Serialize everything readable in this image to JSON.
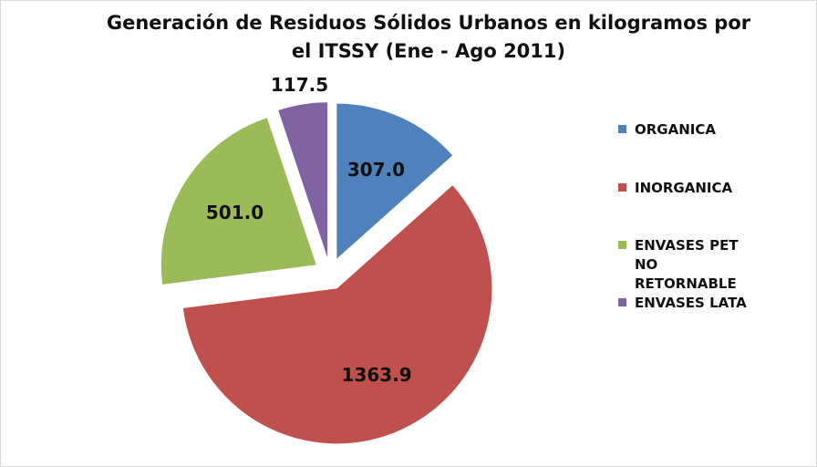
{
  "chart_data": {
    "type": "pie",
    "title": "Generación de Residuos Sólidos Urbanos en kilogramos por el ITSSY (Ene - Ago 2011)",
    "categories": [
      "ORGANICA",
      "INORGANICA",
      "ENVASES PET NO RETORNABLE",
      "ENVASES LATA"
    ],
    "values": [
      307.0,
      1363.9,
      501.0,
      117.5
    ],
    "value_labels": [
      "307.0",
      "1363.9",
      "501.0",
      "117.5"
    ],
    "colors": [
      "#4f81bd",
      "#c0504d",
      "#9bbb59",
      "#8064a2"
    ],
    "legend": "right",
    "exploded": true
  }
}
